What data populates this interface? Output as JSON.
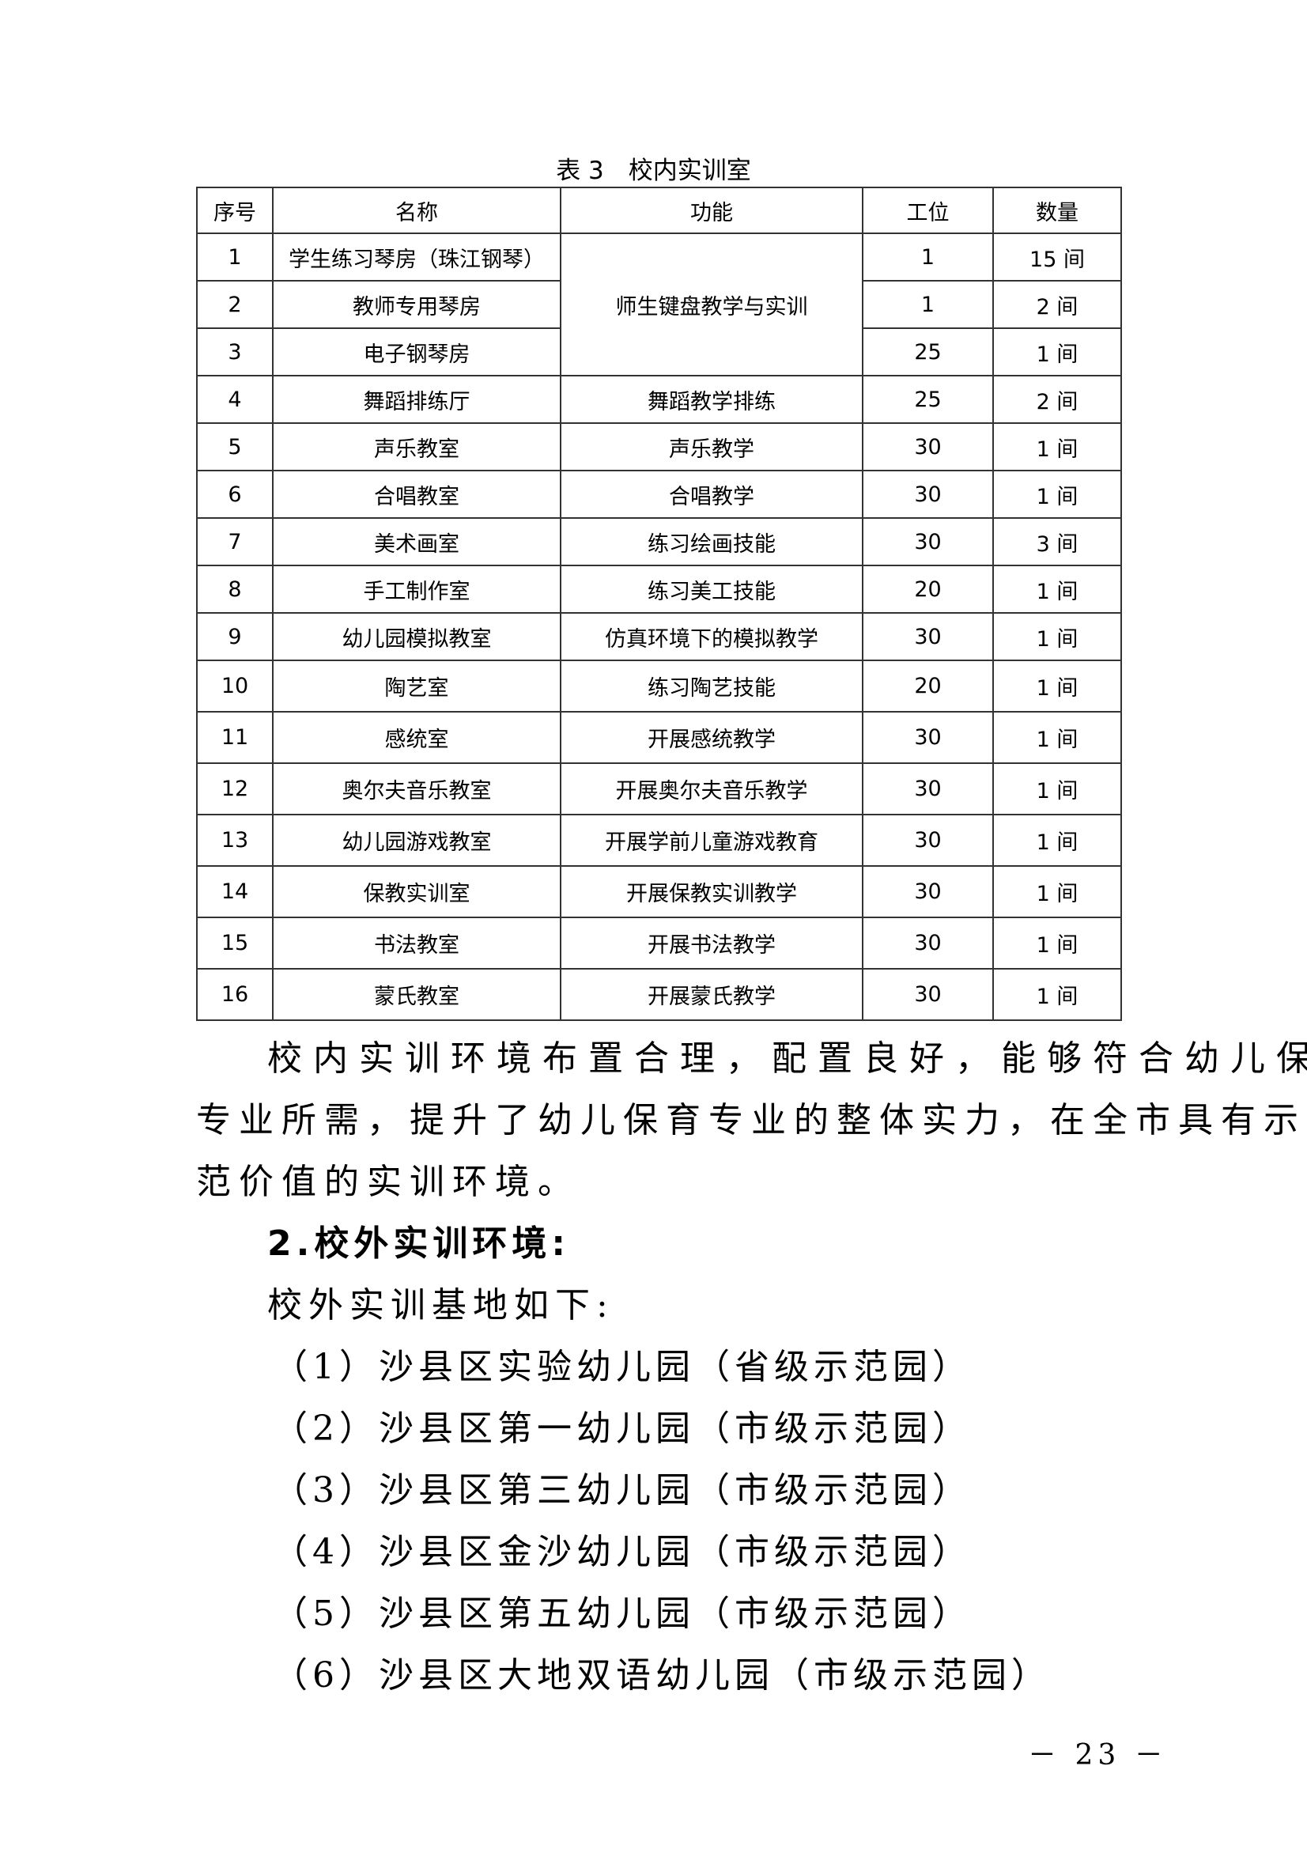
{
  "table": {
    "caption": "表 3　校内实训室",
    "headers": [
      "序号",
      "名称",
      "功能",
      "工位",
      "数量"
    ],
    "rows": [
      {
        "no": "1",
        "name": "学生练习琴房（珠江钢琴）",
        "func": "师生键盘教学与实训",
        "seats": "1",
        "count": "15 间"
      },
      {
        "no": "2",
        "name": "教师专用琴房",
        "seats": "1",
        "count": "2 间"
      },
      {
        "no": "3",
        "name": "电子钢琴房",
        "seats": "25",
        "count": "1 间"
      },
      {
        "no": "4",
        "name": "舞蹈排练厅",
        "func": "舞蹈教学排练",
        "seats": "25",
        "count": "2 间"
      },
      {
        "no": "5",
        "name": "声乐教室",
        "func": "声乐教学",
        "seats": "30",
        "count": "1 间"
      },
      {
        "no": "6",
        "name": "合唱教室",
        "func": "合唱教学",
        "seats": "30",
        "count": "1 间"
      },
      {
        "no": "7",
        "name": "美术画室",
        "func": "练习绘画技能",
        "seats": "30",
        "count": "3 间"
      },
      {
        "no": "8",
        "name": "手工制作室",
        "func": "练习美工技能",
        "seats": "20",
        "count": "1 间"
      },
      {
        "no": "9",
        "name": "幼儿园模拟教室",
        "func": "仿真环境下的模拟教学",
        "seats": "30",
        "count": "1 间"
      },
      {
        "no": "10",
        "name": "陶艺室",
        "func": "练习陶艺技能",
        "seats": "20",
        "count": "1 间"
      },
      {
        "no": "11",
        "name": "感统室",
        "func": "开展感统教学",
        "seats": "30",
        "count": "1 间"
      },
      {
        "no": "12",
        "name": "奥尔夫音乐教室",
        "func": "开展奥尔夫音乐教学",
        "seats": "30",
        "count": "1 间"
      },
      {
        "no": "13",
        "name": "幼儿园游戏教室",
        "func": "开展学前儿童游戏教育",
        "seats": "30",
        "count": "1 间"
      },
      {
        "no": "14",
        "name": "保教实训室",
        "func": "开展保教实训教学",
        "seats": "30",
        "count": "1 间"
      },
      {
        "no": "15",
        "name": "书法教室",
        "func": "开展书法教学",
        "seats": "30",
        "count": "1 间"
      },
      {
        "no": "16",
        "name": "蒙氏教室",
        "func": "开展蒙氏教学",
        "seats": "30",
        "count": "1 间"
      }
    ]
  },
  "paragraph": {
    "lines": [
      "校内实训环境布置合理，配置良好，能够符合幼儿保育",
      "专业所需，提升了幼儿保育专业的整体实力，在全市具有示",
      "范价值的实训环境。"
    ]
  },
  "section_heading": "2.校外实训环境:",
  "intro": "校外实训基地如下:",
  "bases": [
    "（1）沙县区实验幼儿园（省级示范园）",
    "（2）沙县区第一幼儿园（市级示范园）",
    "（3）沙县区第三幼儿园（市级示范园）",
    "（4）沙县区金沙幼儿园（市级示范园）",
    "（5）沙县区第五幼儿园（市级示范园）",
    "（6）沙县区大地双语幼儿园（市级示范园）"
  ],
  "page_number": "－ 23 －"
}
